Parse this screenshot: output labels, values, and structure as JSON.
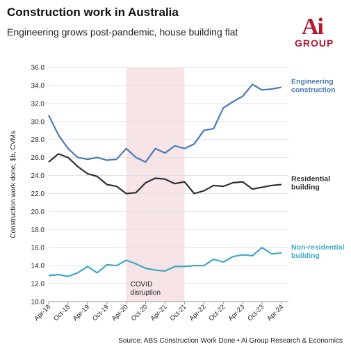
{
  "header": {
    "title": "Construction work in Australia",
    "subtitle": "Engineering grows post-pandemic, house building flat"
  },
  "logo": {
    "mark": "Ai",
    "text": "GROUP",
    "color": "#b7162c"
  },
  "source": "Source: ABS Construction Work Done • Ai Group Research & Economics",
  "chart_data": {
    "type": "line",
    "title": "",
    "xlabel": "",
    "ylabel": "Construction work done, $b, CVMs",
    "ylim": [
      10.0,
      36.0
    ],
    "yticks": [
      "10.0",
      "12.0",
      "14.0",
      "16.0",
      "18.0",
      "20.0",
      "22.0",
      "24.0",
      "26.0",
      "28.0",
      "30.0",
      "32.0",
      "34.0",
      "36.0"
    ],
    "grid": true,
    "x": [
      "Apr-18",
      "Jul-18",
      "Oct-18",
      "Jan-19",
      "Apr-19",
      "Jul-19",
      "Oct-19",
      "Jan-20",
      "Apr-20",
      "Jul-20",
      "Oct-20",
      "Jan-21",
      "Apr-21",
      "Jul-21",
      "Oct-21",
      "Jan-22",
      "Apr-22",
      "Jul-22",
      "Oct-22",
      "Jan-23",
      "Apr-23",
      "Jul-23",
      "Oct-23",
      "Jan-24",
      "Apr-24"
    ],
    "xtick_labels": [
      "Apr-18",
      "Oct-18",
      "Apr-19",
      "Oct-19",
      "Apr-20",
      "Oct-20",
      "Apr-21",
      "Oct-21",
      "Apr-22",
      "Oct-22",
      "Apr-23",
      "Oct-23",
      "Apr-24"
    ],
    "shaded_region": {
      "from": "Apr-20",
      "to": "Oct-21",
      "label_line1": "COVID",
      "label_line2": "disruption",
      "color": "#f6e4e6"
    },
    "series": [
      {
        "name": "Engineering construction",
        "label_lines": [
          "Engineering",
          "construction"
        ],
        "color": "#4a7ab6",
        "values": [
          30.7,
          28.5,
          27.0,
          26.0,
          25.8,
          26.0,
          25.7,
          25.8,
          27.0,
          26.0,
          25.5,
          27.0,
          26.5,
          27.3,
          27.0,
          27.5,
          29.0,
          29.2,
          31.5,
          32.2,
          32.8,
          34.1,
          33.5,
          33.6,
          33.8
        ]
      },
      {
        "name": "Residential building",
        "label_lines": [
          "Residential",
          "building"
        ],
        "color": "#2f2f35",
        "values": [
          25.5,
          26.4,
          26.0,
          25.0,
          24.2,
          23.9,
          23.0,
          22.8,
          22.0,
          22.1,
          23.2,
          23.7,
          23.6,
          23.1,
          23.3,
          22.0,
          22.3,
          22.9,
          22.8,
          23.2,
          23.3,
          22.5,
          22.7,
          22.9,
          23.0
        ]
      },
      {
        "name": "Non-residential building",
        "label_lines": [
          "Non-residential",
          "building"
        ],
        "color": "#3fa7c4",
        "values": [
          12.9,
          13.0,
          12.8,
          13.2,
          13.9,
          13.2,
          14.1,
          14.0,
          14.6,
          14.2,
          13.7,
          13.5,
          13.4,
          13.9,
          13.9,
          14.0,
          14.0,
          14.7,
          14.4,
          15.0,
          15.2,
          15.1,
          16.0,
          15.3,
          15.4
        ]
      }
    ]
  }
}
